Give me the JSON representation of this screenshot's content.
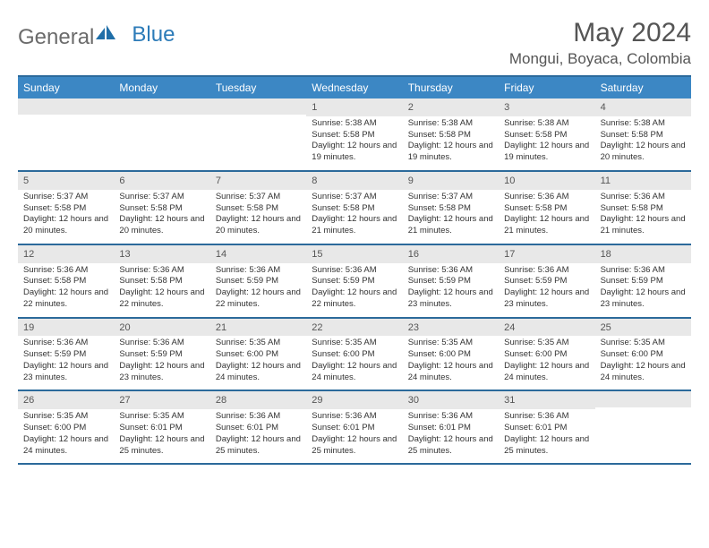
{
  "logo": {
    "text_general": "General",
    "text_blue": "Blue"
  },
  "title": "May 2024",
  "location": "Mongui, Boyaca, Colombia",
  "colors": {
    "header_bg": "#3c87c4",
    "header_border": "#2c6a9b",
    "daynum_bg": "#e8e8e8"
  },
  "day_names": [
    "Sunday",
    "Monday",
    "Tuesday",
    "Wednesday",
    "Thursday",
    "Friday",
    "Saturday"
  ],
  "weeks": [
    [
      {
        "n": "",
        "lines": []
      },
      {
        "n": "",
        "lines": []
      },
      {
        "n": "",
        "lines": []
      },
      {
        "n": "1",
        "lines": [
          "Sunrise: 5:38 AM",
          "Sunset: 5:58 PM",
          "Daylight: 12 hours and 19 minutes."
        ]
      },
      {
        "n": "2",
        "lines": [
          "Sunrise: 5:38 AM",
          "Sunset: 5:58 PM",
          "Daylight: 12 hours and 19 minutes."
        ]
      },
      {
        "n": "3",
        "lines": [
          "Sunrise: 5:38 AM",
          "Sunset: 5:58 PM",
          "Daylight: 12 hours and 19 minutes."
        ]
      },
      {
        "n": "4",
        "lines": [
          "Sunrise: 5:38 AM",
          "Sunset: 5:58 PM",
          "Daylight: 12 hours and 20 minutes."
        ]
      }
    ],
    [
      {
        "n": "5",
        "lines": [
          "Sunrise: 5:37 AM",
          "Sunset: 5:58 PM",
          "Daylight: 12 hours and 20 minutes."
        ]
      },
      {
        "n": "6",
        "lines": [
          "Sunrise: 5:37 AM",
          "Sunset: 5:58 PM",
          "Daylight: 12 hours and 20 minutes."
        ]
      },
      {
        "n": "7",
        "lines": [
          "Sunrise: 5:37 AM",
          "Sunset: 5:58 PM",
          "Daylight: 12 hours and 20 minutes."
        ]
      },
      {
        "n": "8",
        "lines": [
          "Sunrise: 5:37 AM",
          "Sunset: 5:58 PM",
          "Daylight: 12 hours and 21 minutes."
        ]
      },
      {
        "n": "9",
        "lines": [
          "Sunrise: 5:37 AM",
          "Sunset: 5:58 PM",
          "Daylight: 12 hours and 21 minutes."
        ]
      },
      {
        "n": "10",
        "lines": [
          "Sunrise: 5:36 AM",
          "Sunset: 5:58 PM",
          "Daylight: 12 hours and 21 minutes."
        ]
      },
      {
        "n": "11",
        "lines": [
          "Sunrise: 5:36 AM",
          "Sunset: 5:58 PM",
          "Daylight: 12 hours and 21 minutes."
        ]
      }
    ],
    [
      {
        "n": "12",
        "lines": [
          "Sunrise: 5:36 AM",
          "Sunset: 5:58 PM",
          "Daylight: 12 hours and 22 minutes."
        ]
      },
      {
        "n": "13",
        "lines": [
          "Sunrise: 5:36 AM",
          "Sunset: 5:58 PM",
          "Daylight: 12 hours and 22 minutes."
        ]
      },
      {
        "n": "14",
        "lines": [
          "Sunrise: 5:36 AM",
          "Sunset: 5:59 PM",
          "Daylight: 12 hours and 22 minutes."
        ]
      },
      {
        "n": "15",
        "lines": [
          "Sunrise: 5:36 AM",
          "Sunset: 5:59 PM",
          "Daylight: 12 hours and 22 minutes."
        ]
      },
      {
        "n": "16",
        "lines": [
          "Sunrise: 5:36 AM",
          "Sunset: 5:59 PM",
          "Daylight: 12 hours and 23 minutes."
        ]
      },
      {
        "n": "17",
        "lines": [
          "Sunrise: 5:36 AM",
          "Sunset: 5:59 PM",
          "Daylight: 12 hours and 23 minutes."
        ]
      },
      {
        "n": "18",
        "lines": [
          "Sunrise: 5:36 AM",
          "Sunset: 5:59 PM",
          "Daylight: 12 hours and 23 minutes."
        ]
      }
    ],
    [
      {
        "n": "19",
        "lines": [
          "Sunrise: 5:36 AM",
          "Sunset: 5:59 PM",
          "Daylight: 12 hours and 23 minutes."
        ]
      },
      {
        "n": "20",
        "lines": [
          "Sunrise: 5:36 AM",
          "Sunset: 5:59 PM",
          "Daylight: 12 hours and 23 minutes."
        ]
      },
      {
        "n": "21",
        "lines": [
          "Sunrise: 5:35 AM",
          "Sunset: 6:00 PM",
          "Daylight: 12 hours and 24 minutes."
        ]
      },
      {
        "n": "22",
        "lines": [
          "Sunrise: 5:35 AM",
          "Sunset: 6:00 PM",
          "Daylight: 12 hours and 24 minutes."
        ]
      },
      {
        "n": "23",
        "lines": [
          "Sunrise: 5:35 AM",
          "Sunset: 6:00 PM",
          "Daylight: 12 hours and 24 minutes."
        ]
      },
      {
        "n": "24",
        "lines": [
          "Sunrise: 5:35 AM",
          "Sunset: 6:00 PM",
          "Daylight: 12 hours and 24 minutes."
        ]
      },
      {
        "n": "25",
        "lines": [
          "Sunrise: 5:35 AM",
          "Sunset: 6:00 PM",
          "Daylight: 12 hours and 24 minutes."
        ]
      }
    ],
    [
      {
        "n": "26",
        "lines": [
          "Sunrise: 5:35 AM",
          "Sunset: 6:00 PM",
          "Daylight: 12 hours and 24 minutes."
        ]
      },
      {
        "n": "27",
        "lines": [
          "Sunrise: 5:35 AM",
          "Sunset: 6:01 PM",
          "Daylight: 12 hours and 25 minutes."
        ]
      },
      {
        "n": "28",
        "lines": [
          "Sunrise: 5:36 AM",
          "Sunset: 6:01 PM",
          "Daylight: 12 hours and 25 minutes."
        ]
      },
      {
        "n": "29",
        "lines": [
          "Sunrise: 5:36 AM",
          "Sunset: 6:01 PM",
          "Daylight: 12 hours and 25 minutes."
        ]
      },
      {
        "n": "30",
        "lines": [
          "Sunrise: 5:36 AM",
          "Sunset: 6:01 PM",
          "Daylight: 12 hours and 25 minutes."
        ]
      },
      {
        "n": "31",
        "lines": [
          "Sunrise: 5:36 AM",
          "Sunset: 6:01 PM",
          "Daylight: 12 hours and 25 minutes."
        ]
      },
      {
        "n": "",
        "lines": []
      }
    ]
  ]
}
